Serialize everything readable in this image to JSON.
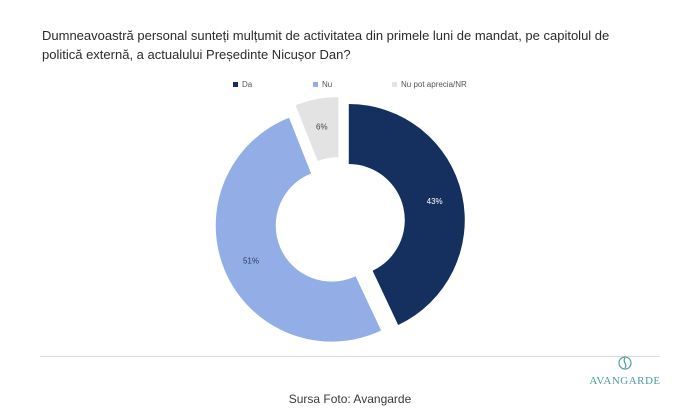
{
  "title": "Dumneavoastră personal sunteți mulțumit de activitatea din primele luni de mandat, pe capitolul de politică externă, a actualului Președinte Nicușor Dan?",
  "caption": "Sursa Foto: Avangarde",
  "logo": {
    "text": "AVANGARDE",
    "icon": "avangarde-emblem-icon"
  },
  "chart_data": {
    "type": "pie",
    "subtype": "donut-exploded",
    "title": "Dumneavoastră personal sunteți mulțumit de activitatea din primele luni de mandat, pe capitolul de politică externă, a actualului Președinte Nicușor Dan?",
    "legend": "top",
    "categories": [
      "Da",
      "Nu",
      "Nu pot aprecia/NR"
    ],
    "values": [
      43,
      51,
      6
    ],
    "data_labels": [
      "43%",
      "51%",
      "6%"
    ],
    "colors": [
      "#15305f",
      "#93aee6",
      "#e3e3e3"
    ],
    "label_colors": [
      "#ffffff",
      "#2b3a55",
      "#444444"
    ]
  }
}
